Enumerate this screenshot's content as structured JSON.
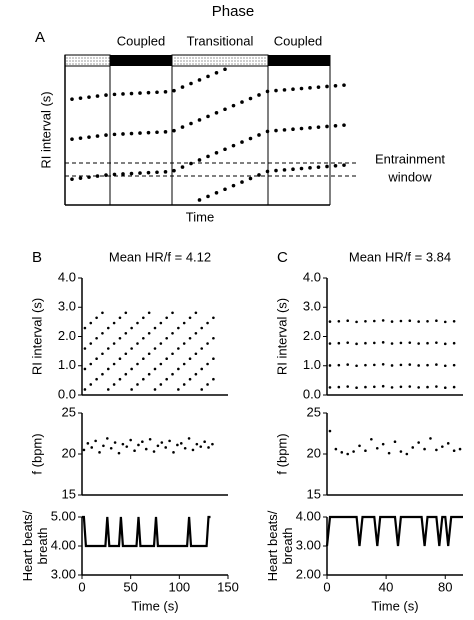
{
  "panel_a": {
    "panel": "A",
    "title": "Phase",
    "phases": [
      "Coupled",
      "Transitional",
      "Coupled"
    ],
    "y_label": "RI interval (s)",
    "x_label": "Time",
    "annotation": [
      "Entrainment",
      "window"
    ]
  },
  "chart_data": [
    {
      "type": "scatter",
      "panel": "B",
      "title": "Mean HR/f = 4.12",
      "y_label": [
        "RI interval (s)"
      ],
      "xlim": [
        0,
        150
      ],
      "ylim": [
        0,
        4
      ],
      "yticks": [
        {
          "value": 0,
          "label": "0.0"
        },
        {
          "value": 1,
          "label": "1.0"
        },
        {
          "value": 2,
          "label": "2.0"
        },
        {
          "value": 3,
          "label": "3.0"
        },
        {
          "value": 4,
          "label": "4.0"
        }
      ],
      "x": [
        3,
        3,
        3,
        3,
        9,
        9,
        9,
        9,
        15,
        15,
        15,
        15,
        21,
        21,
        21,
        21,
        27,
        27,
        27,
        27,
        33,
        33,
        33,
        33,
        39,
        39,
        39,
        39,
        45,
        45,
        45,
        45,
        51,
        51,
        51,
        51,
        57,
        57,
        57,
        57,
        63,
        63,
        63,
        63,
        69,
        69,
        69,
        69,
        75,
        75,
        75,
        75,
        81,
        81,
        81,
        81,
        87,
        87,
        87,
        87,
        93,
        93,
        93,
        93,
        99,
        99,
        99,
        99,
        105,
        105,
        105,
        105,
        111,
        111,
        111,
        111,
        117,
        117,
        117,
        117,
        123,
        123,
        123,
        123,
        129,
        129,
        129,
        129,
        135,
        135,
        135,
        135
      ],
      "values": [
        0.19,
        0.89,
        1.59,
        2.29,
        0.36,
        1.06,
        1.76,
        2.46,
        0.54,
        1.24,
        1.94,
        2.64,
        0.71,
        1.41,
        2.11,
        2.81,
        0.19,
        0.89,
        1.59,
        2.29,
        0.36,
        1.06,
        1.76,
        2.46,
        0.54,
        1.24,
        1.94,
        2.64,
        0.71,
        1.41,
        2.11,
        2.81,
        0.19,
        0.89,
        1.59,
        2.29,
        0.36,
        1.06,
        1.76,
        2.46,
        0.54,
        1.24,
        1.94,
        2.64,
        0.71,
        1.41,
        2.11,
        2.81,
        0.19,
        0.89,
        1.59,
        2.29,
        0.36,
        1.06,
        1.76,
        2.46,
        0.54,
        1.24,
        1.94,
        2.64,
        0.71,
        1.41,
        2.11,
        2.81,
        0.19,
        0.89,
        1.59,
        2.29,
        0.36,
        1.06,
        1.76,
        2.46,
        0.54,
        1.24,
        1.94,
        2.64,
        0.71,
        1.41,
        2.11,
        2.81,
        0.19,
        0.89,
        1.59,
        2.29,
        0.36,
        1.06,
        1.76,
        2.46,
        0.54,
        1.24,
        1.94,
        2.64
      ],
      "color": "#000000"
    },
    {
      "type": "scatter",
      "y_label": [
        "f (bpm)"
      ],
      "xlim": [
        0,
        150
      ],
      "ylim": [
        15,
        25
      ],
      "yticks": [
        15,
        20,
        25
      ],
      "x": [
        2,
        6,
        10,
        14,
        18,
        22,
        26,
        30,
        34,
        38,
        42,
        46,
        50,
        54,
        58,
        62,
        66,
        70,
        74,
        78,
        82,
        86,
        90,
        94,
        98,
        102,
        106,
        110,
        114,
        118,
        122,
        126,
        130,
        134
      ],
      "values": [
        20.5,
        21.3,
        20.8,
        21.6,
        20.2,
        21.0,
        21.9,
        20.7,
        21.4,
        20.1,
        21.2,
        20.9,
        21.7,
        20.4,
        21.1,
        21.5,
        20.6,
        21.8,
        20.3,
        21.0,
        21.4,
        20.8,
        21.6,
        20.2,
        21.1,
        21.3,
        20.7,
        21.9,
        20.5,
        21.2,
        20.9,
        21.5,
        20.8,
        21.2
      ],
      "color": "#000000"
    },
    {
      "type": "line",
      "y_label": [
        "Heart beats/",
        "breath"
      ],
      "x_label": "Time (s)",
      "xlim": [
        0,
        150
      ],
      "xticks": [
        0,
        50,
        100,
        150
      ],
      "ylim": [
        3,
        5
      ],
      "yticks": [
        {
          "value": 3,
          "label": "3.00"
        },
        {
          "value": 4,
          "label": "4.00"
        },
        {
          "value": 5,
          "label": "5.00"
        }
      ],
      "x": [
        0,
        2,
        4,
        24,
        26,
        28,
        38,
        40,
        42,
        56,
        58,
        60,
        74,
        76,
        78,
        108,
        110,
        112,
        128,
        130,
        132
      ],
      "values": [
        5,
        5,
        4,
        4,
        5,
        4,
        4,
        5,
        4,
        4,
        5,
        4,
        4,
        5,
        4,
        4,
        5,
        4,
        4,
        5,
        5
      ],
      "color": "#000000"
    },
    {
      "type": "scatter",
      "panel": "C",
      "title": "Mean HR/f = 3.84",
      "y_label": [
        "RI interval (s)"
      ],
      "xlim": [
        0,
        92
      ],
      "ylim": [
        0,
        4
      ],
      "yticks": [
        {
          "value": 0,
          "label": "0.0"
        },
        {
          "value": 1,
          "label": "1.0"
        },
        {
          "value": 2,
          "label": "2.0"
        },
        {
          "value": 3,
          "label": "3.0"
        },
        {
          "value": 4,
          "label": "4.0"
        }
      ],
      "x": [
        2,
        2,
        2,
        2,
        8,
        8,
        8,
        8,
        14,
        14,
        14,
        14,
        20,
        20,
        20,
        20,
        26,
        26,
        26,
        26,
        32,
        32,
        32,
        32,
        38,
        38,
        38,
        38,
        44,
        44,
        44,
        44,
        50,
        50,
        50,
        50,
        56,
        56,
        56,
        56,
        62,
        62,
        62,
        62,
        68,
        68,
        68,
        68,
        74,
        74,
        74,
        74,
        80,
        80,
        80,
        80,
        86,
        86,
        86,
        86
      ],
      "values": [
        0.26,
        1.01,
        1.76,
        2.51,
        0.27,
        1.02,
        1.77,
        2.52,
        0.29,
        1.04,
        1.79,
        2.54,
        0.25,
        1.0,
        1.75,
        2.5,
        0.27,
        1.02,
        1.77,
        2.52,
        0.28,
        1.03,
        1.78,
        2.53,
        0.3,
        1.05,
        1.8,
        2.55,
        0.26,
        1.01,
        1.76,
        2.51,
        0.28,
        1.03,
        1.78,
        2.53,
        0.29,
        1.04,
        1.79,
        2.54,
        0.26,
        1.01,
        1.76,
        2.51,
        0.27,
        1.02,
        1.77,
        2.52,
        0.29,
        1.04,
        1.79,
        2.54,
        0.25,
        1.0,
        1.75,
        2.5,
        0.27,
        1.02,
        1.77,
        2.52
      ],
      "color": "#000000"
    },
    {
      "type": "scatter",
      "y_label": [
        "f (bpm)"
      ],
      "xlim": [
        0,
        92
      ],
      "ylim": [
        15,
        25
      ],
      "yticks": [
        15,
        20,
        25
      ],
      "x": [
        2,
        6,
        10,
        14,
        18,
        22,
        26,
        30,
        34,
        38,
        42,
        46,
        50,
        54,
        58,
        62,
        66,
        70,
        74,
        78,
        82,
        86,
        90
      ],
      "values": [
        22.8,
        20.6,
        20.2,
        20.0,
        20.3,
        21.0,
        20.4,
        21.8,
        20.7,
        21.2,
        20.1,
        21.5,
        20.3,
        20.0,
        20.8,
        21.4,
        20.6,
        21.9,
        20.5,
        20.9,
        21.3,
        20.4,
        20.6
      ],
      "color": "#000000"
    },
    {
      "type": "line",
      "y_label": [
        "Heart beats/",
        "breath"
      ],
      "x_label": "Time (s)",
      "xlim": [
        0,
        92
      ],
      "xticks": [
        0,
        40,
        80
      ],
      "ylim": [
        2,
        4
      ],
      "yticks": [
        {
          "value": 2,
          "label": "2.00"
        },
        {
          "value": 3,
          "label": "3.00"
        },
        {
          "value": 4,
          "label": "4.00"
        }
      ],
      "x": [
        0,
        2,
        20,
        22,
        24,
        32,
        34,
        36,
        46,
        48,
        50,
        64,
        66,
        68,
        74,
        76,
        78,
        80,
        82,
        84,
        92
      ],
      "values": [
        3,
        4,
        4,
        3,
        4,
        4,
        3,
        4,
        4,
        3,
        4,
        4,
        3,
        4,
        4,
        3,
        4,
        4,
        3,
        4,
        4
      ],
      "color": "#000000"
    }
  ]
}
